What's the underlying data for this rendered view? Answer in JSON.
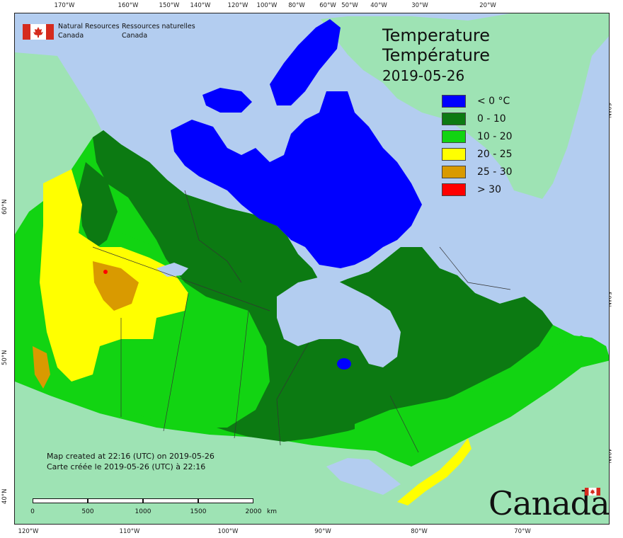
{
  "agency": {
    "english_line1": "Natural Resources",
    "english_line2": "Canada",
    "french_line1": "Ressources naturelles",
    "french_line2": "Canada"
  },
  "title": {
    "english": "Temperature",
    "french": "Température",
    "date": "2019-05-26"
  },
  "legend": [
    {
      "label": "< 0 °C",
      "color": "#0000ff"
    },
    {
      "label": "0 - 10",
      "color": "#0c7a12"
    },
    {
      "label": "10 - 20",
      "color": "#12d412"
    },
    {
      "label": "20 - 25",
      "color": "#ffff00"
    },
    {
      "label": "25 - 30",
      "color": "#d99a00"
    },
    {
      "label": "> 30",
      "color": "#ff0000"
    }
  ],
  "created_note": {
    "english": "Map created at 22:16 (UTC) on 2019-05-26",
    "french": "Carte créée le 2019-05-26 (UTC) à 22:16"
  },
  "scale_bar": {
    "labels": [
      "0",
      "500",
      "1000",
      "1500",
      "2000"
    ],
    "unit": "km"
  },
  "wordmark": "Canada",
  "graticule": {
    "top_longitudes": [
      "170°W",
      "160°W",
      "150°W",
      "140°W",
      "120°W",
      "100°W",
      "80°W",
      "60°W",
      "50°W",
      "40°W",
      "30°W",
      "20°W"
    ],
    "bottom_longitudes": [
      "120°W",
      "110°W",
      "100°W",
      "90°W",
      "80°W",
      "70°W"
    ],
    "left_latitudes": [
      "60°N",
      "50°N",
      "40°N"
    ],
    "right_latitudes": [
      "60°N",
      "50°N",
      "40°N"
    ]
  },
  "colors": {
    "ocean": "#b3cdf0",
    "non_canada_land": "#9ee3b4",
    "below_zero": "#0000ff",
    "zero_to_ten": "#0c7a12",
    "ten_to_twenty": "#12d412",
    "twenty_to_twenty_five": "#ffff00",
    "twenty_five_to_thirty": "#d99a00",
    "above_thirty": "#ff0000"
  }
}
